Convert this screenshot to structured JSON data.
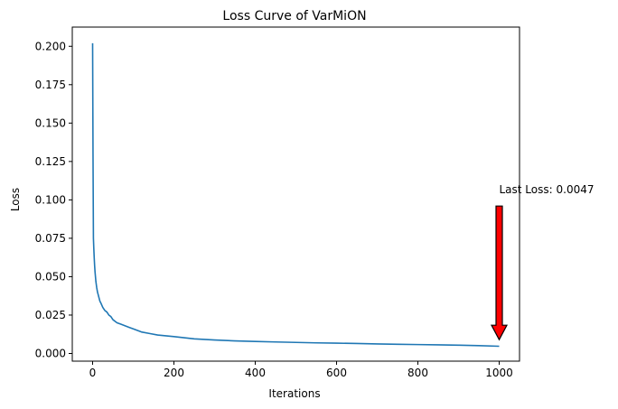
{
  "chart_data": {
    "type": "line",
    "title": "Loss Curve of VarMiON",
    "xlabel": "Iterations",
    "ylabel": "Loss",
    "xlim": [
      -50,
      1050
    ],
    "ylim": [
      -0.005,
      0.2125
    ],
    "x_ticks": [
      0,
      200,
      400,
      600,
      800,
      1000
    ],
    "x_tick_labels": [
      "0",
      "200",
      "400",
      "600",
      "800",
      "1000"
    ],
    "y_ticks": [
      0.0,
      0.025,
      0.05,
      0.075,
      0.1,
      0.125,
      0.15,
      0.175,
      0.2
    ],
    "y_tick_labels": [
      "0.000",
      "0.025",
      "0.050",
      "0.075",
      "0.100",
      "0.125",
      "0.150",
      "0.175",
      "0.200"
    ],
    "grid": false,
    "series": [
      {
        "color": "#1f77b4",
        "x": [
          0,
          1,
          2,
          3,
          4,
          5,
          6,
          8,
          10,
          12,
          15,
          18,
          20,
          25,
          30,
          35,
          40,
          45,
          50,
          60,
          70,
          80,
          90,
          100,
          120,
          140,
          160,
          180,
          200,
          250,
          300,
          350,
          400,
          450,
          500,
          550,
          600,
          650,
          700,
          750,
          800,
          850,
          900,
          950,
          1000
        ],
        "y": [
          0.202,
          0.13,
          0.075,
          0.068,
          0.062,
          0.057,
          0.053,
          0.047,
          0.043,
          0.04,
          0.037,
          0.034,
          0.033,
          0.03,
          0.028,
          0.027,
          0.025,
          0.024,
          0.022,
          0.02,
          0.019,
          0.018,
          0.017,
          0.016,
          0.014,
          0.013,
          0.012,
          0.0115,
          0.011,
          0.0095,
          0.0088,
          0.0082,
          0.0078,
          0.0075,
          0.0072,
          0.0069,
          0.0067,
          0.0065,
          0.0062,
          0.006,
          0.0058,
          0.0056,
          0.0054,
          0.0051,
          0.0047
        ]
      }
    ],
    "annotation": {
      "text": "Last Loss: 0.0047",
      "x": 1000,
      "y": 0.0047,
      "arrow_start_y": 0.096,
      "arrow_end_y": 0.009,
      "arrow_color": "#ff0000"
    }
  }
}
